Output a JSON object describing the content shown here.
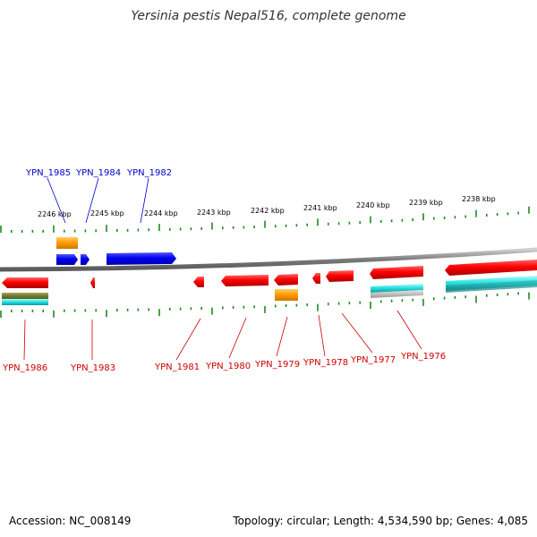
{
  "title": "Yersinia pestis Nepal516, complete genome",
  "footer": {
    "accession": "Accession: NC_008149",
    "summary": "Topology: circular; Length: 4,534,590 bp; Genes: 4,085"
  },
  "colors": {
    "forward_gene": "#0000ee",
    "reverse_gene": "#ee0000",
    "backbone": "#888888",
    "tick": "#228822",
    "orange": "#ff9900",
    "cyan": "#22cccc",
    "olive": "#888833",
    "teal": "#119999",
    "gray": "#bbbbbb"
  },
  "kbp_labels": [
    "2246 kbp",
    "2245 kbp",
    "2244 kbp",
    "2243 kbp",
    "2242 kbp",
    "2241 kbp",
    "2240 kbp",
    "2239 kbp",
    "2238 kbp"
  ],
  "top_genes": [
    "YPN_1985",
    "YPN_1984",
    "YPN_1982"
  ],
  "bottom_genes": [
    "YPN_1986",
    "YPN_1983",
    "YPN_1981",
    "YPN_1980",
    "YPN_1979",
    "YPN_1978",
    "YPN_1977",
    "YPN_1976"
  ]
}
